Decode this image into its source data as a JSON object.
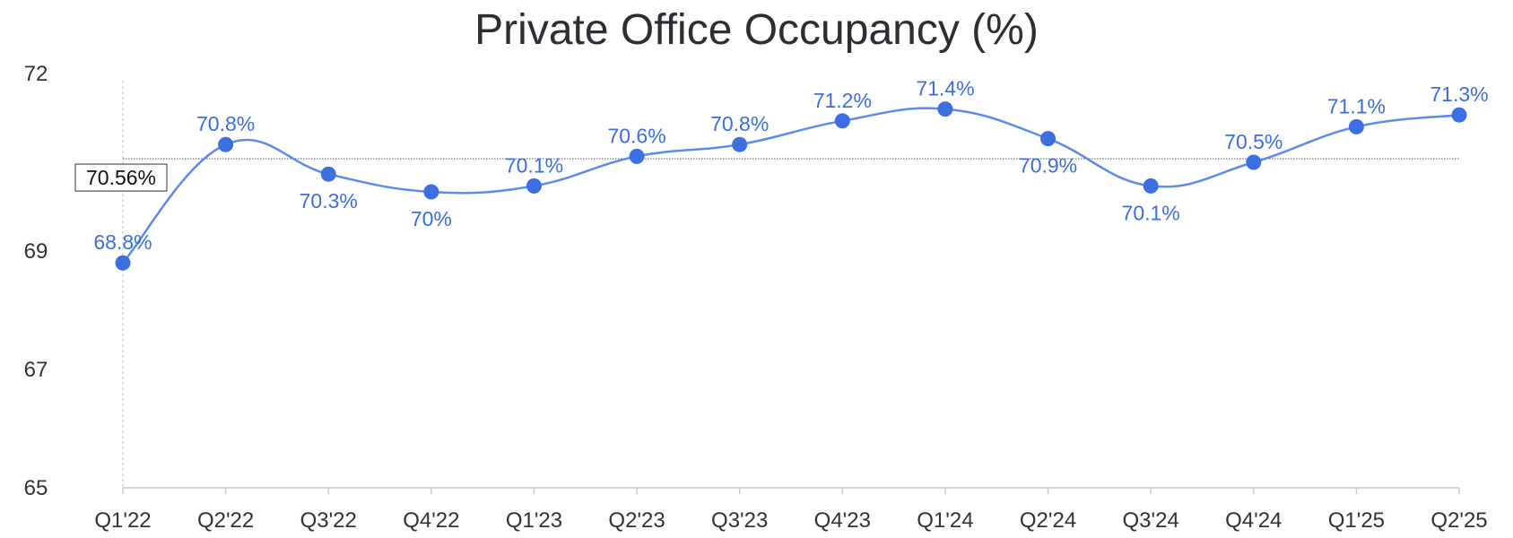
{
  "chart_data": {
    "type": "line",
    "title": "Private Office Occupancy (%)",
    "xlabel": "",
    "ylabel": "",
    "categories": [
      "Q1'22",
      "Q2'22",
      "Q3'22",
      "Q4'22",
      "Q1'23",
      "Q2'23",
      "Q3'23",
      "Q4'23",
      "Q1'24",
      "Q2'24",
      "Q3'24",
      "Q4'24",
      "Q1'25",
      "Q2'25"
    ],
    "series": [
      {
        "values": [
          68.8,
          70.8,
          70.3,
          70.0,
          70.1,
          70.6,
          70.8,
          71.2,
          71.4,
          70.9,
          70.1,
          70.5,
          71.1,
          71.3
        ],
        "labels": [
          "68.8%",
          "70.8%",
          "70.3%",
          "70%",
          "70.1%",
          "70.6%",
          "70.8%",
          "71.2%",
          "71.4%",
          "70.9%",
          "70.1%",
          "70.5%",
          "71.1%",
          "71.3%"
        ],
        "color": "#3b6fe0"
      }
    ],
    "ylim": [
      65,
      72
    ],
    "yticks": [
      65,
      67,
      69,
      72
    ],
    "reference_line": {
      "value": 70.56,
      "label": "70.56%"
    },
    "grid": false,
    "legend": "none"
  }
}
